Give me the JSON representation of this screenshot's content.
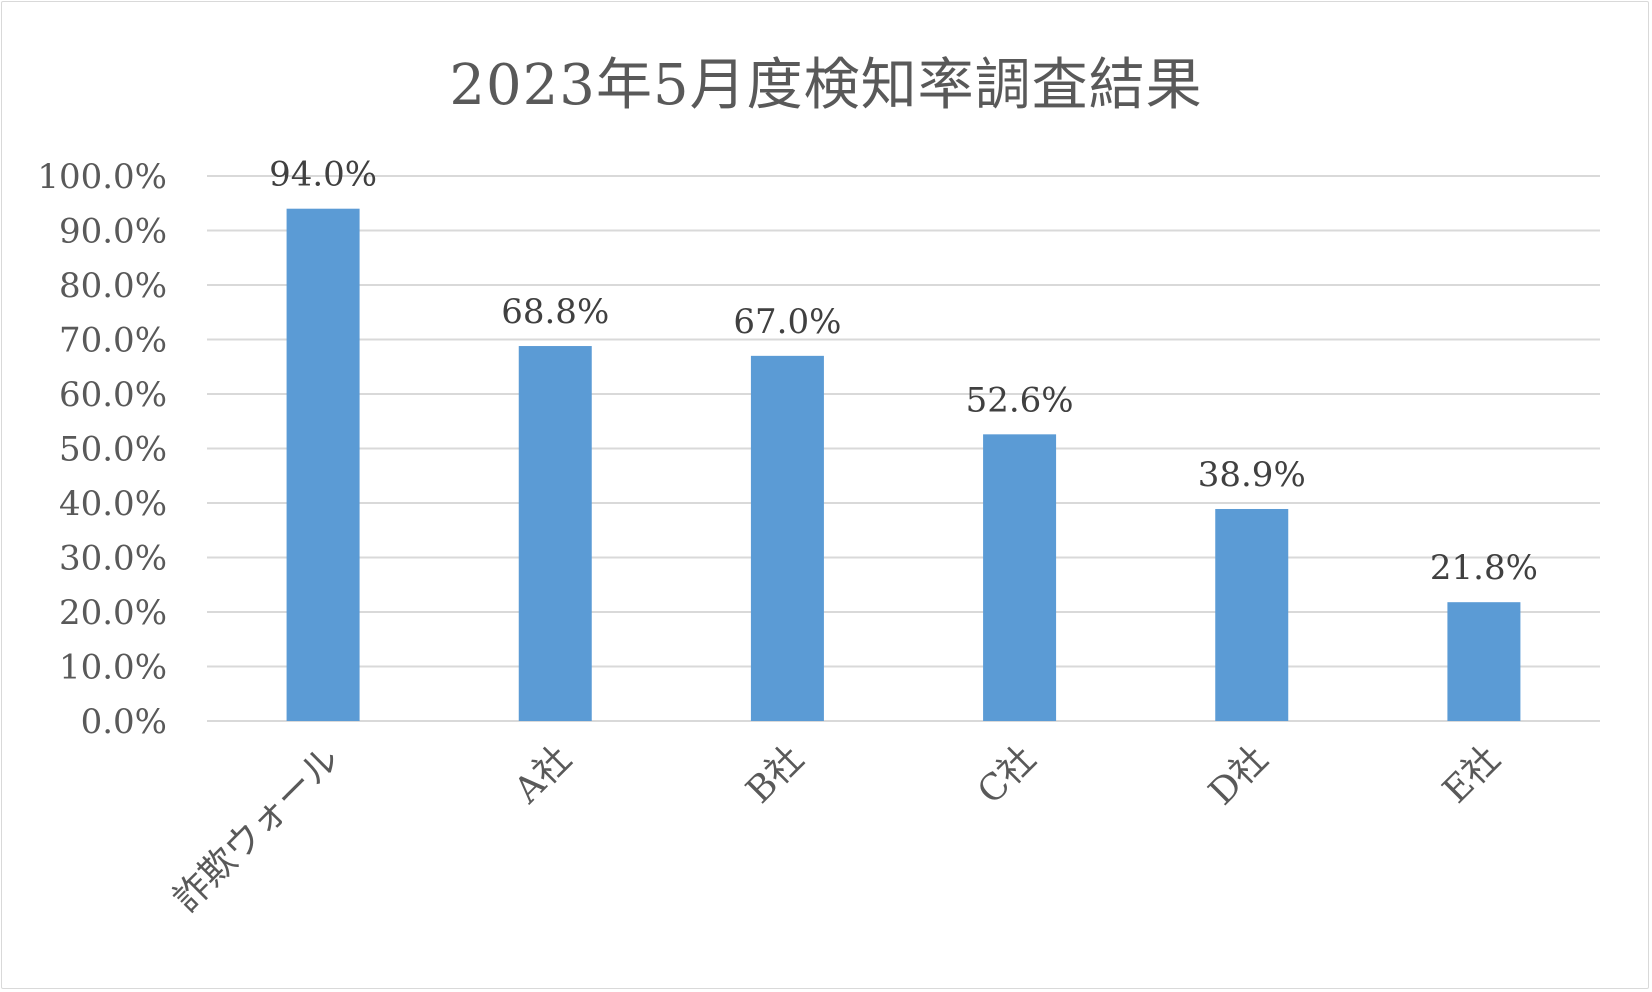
{
  "chart_data": {
    "type": "bar",
    "title": "2023年5月度検知率調査結果",
    "categories": [
      "詐欺ウォール",
      "A社",
      "B社",
      "C社",
      "D社",
      "E社"
    ],
    "values": [
      94.0,
      68.8,
      67.0,
      52.6,
      38.9,
      21.8
    ],
    "data_labels": [
      "94.0%",
      "68.8%",
      "67.0%",
      "52.6%",
      "38.9%",
      "21.8%"
    ],
    "y_ticks": [
      "0.0%",
      "10.0%",
      "20.0%",
      "30.0%",
      "40.0%",
      "50.0%",
      "60.0%",
      "70.0%",
      "80.0%",
      "90.0%",
      "100.0%"
    ],
    "ylim": [
      0,
      100
    ],
    "y_step": 10,
    "xlabel": "",
    "ylabel": "",
    "grid": true,
    "legend": "none",
    "bar_color": "#5b9bd5",
    "grid_color": "#d9d9d9"
  }
}
